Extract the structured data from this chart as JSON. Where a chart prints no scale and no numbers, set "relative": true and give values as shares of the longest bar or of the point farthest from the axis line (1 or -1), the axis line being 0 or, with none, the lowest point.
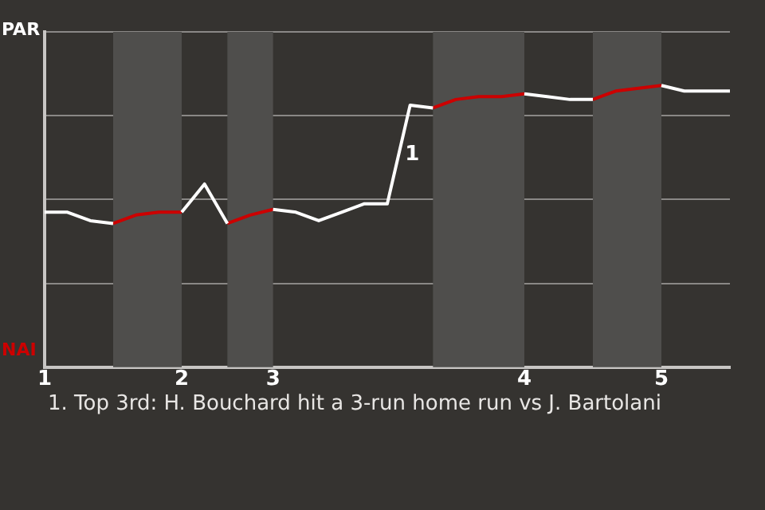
{
  "chart_data": {
    "type": "line",
    "categories": [
      "1",
      null,
      null,
      null,
      null,
      null,
      "2",
      null,
      null,
      null,
      "3",
      null,
      null,
      null,
      null,
      null,
      null,
      null,
      null,
      null,
      null,
      "4",
      null,
      null,
      null,
      null,
      null,
      "5",
      null,
      null,
      null
    ],
    "relative": true,
    "series": [
      {
        "color": "#ffffff",
        "values": [
          0.55,
          0.55,
          0.52,
          0.51,
          null,
          null,
          0.55,
          0.65,
          0.51,
          null,
          0.56,
          0.55,
          0.52,
          0.55,
          0.58,
          0.58,
          0.93,
          0.92,
          null,
          null,
          null,
          0.97,
          0.96,
          0.95,
          0.95,
          null,
          null,
          1,
          0.98,
          0.98,
          0.98
        ]
      },
      {
        "color": "#cc0000",
        "values": [
          null,
          null,
          null,
          0.51,
          0.54,
          0.55,
          0.55,
          null,
          0.51,
          0.54,
          0.56,
          null,
          null,
          null,
          null,
          null,
          null,
          0.92,
          0.95,
          0.96,
          0.96,
          0.97,
          null,
          null,
          0.95,
          0.98,
          0.99,
          1,
          null,
          null,
          null
        ]
      }
    ],
    "grid": "y",
    "annotations": [
      "PAR",
      "NAI",
      "1",
      "1. Top 3rd: H. Bouchard hit a 3-run home run vs J. Bartolani"
    ]
  }
}
